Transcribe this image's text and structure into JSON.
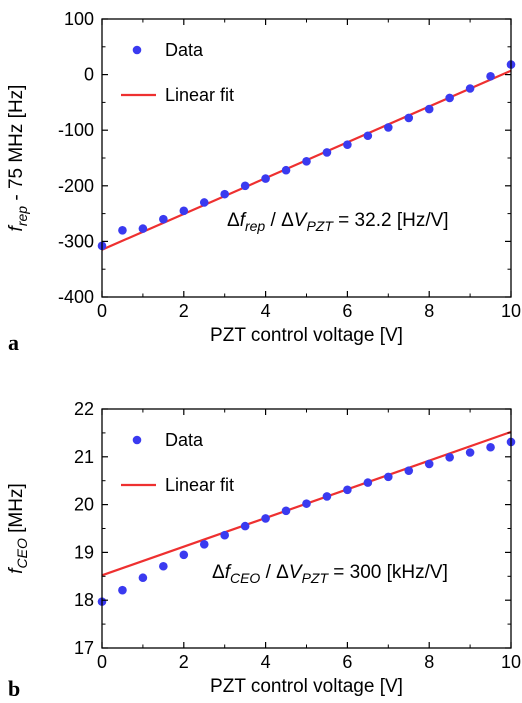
{
  "chart_data": [
    {
      "type": "scatter",
      "panel_label": "a",
      "xlabel": "PZT control voltage [V]",
      "ylabel": {
        "f": "f",
        "sub": "rep",
        "rest": " - 75 MHz [Hz]"
      },
      "xlim": [
        0,
        10
      ],
      "ylim": [
        -400,
        100
      ],
      "xticks": [
        0,
        2,
        4,
        6,
        8,
        10
      ],
      "yticks": [
        -400,
        -300,
        -200,
        -100,
        0,
        100
      ],
      "legend": {
        "position": "top-left",
        "data_label": "Data",
        "fit_label": "Linear fit"
      },
      "annotation": {
        "delta": "Δ",
        "f": "f",
        "f_sub": "rep",
        "slash": " / ",
        "v": "V",
        "v_sub": "PZT",
        "value": " = 32.2 [Hz/V]"
      },
      "series": [
        {
          "name": "Data",
          "color": "#3a3af0",
          "x": [
            0,
            0.5,
            1,
            1.5,
            2,
            2.5,
            3,
            3.5,
            4,
            4.5,
            5,
            5.5,
            6,
            6.5,
            7,
            7.5,
            8,
            8.5,
            9,
            9.5,
            10
          ],
          "y": [
            -308,
            -280,
            -277,
            -260,
            -245,
            -230,
            -215,
            -200,
            -187,
            -172,
            -156,
            -140,
            -126,
            -110,
            -95,
            -78,
            -62,
            -42,
            -25,
            -3,
            18
          ]
        },
        {
          "name": "Linear fit",
          "color": "#ee3030",
          "x": [
            0,
            10
          ],
          "y": [
            -315,
            7
          ]
        }
      ]
    },
    {
      "type": "scatter",
      "panel_label": "b",
      "xlabel": "PZT control voltage [V]",
      "ylabel": {
        "f": "f",
        "sub": "CEO",
        "rest": " [MHz]"
      },
      "xlim": [
        0,
        10
      ],
      "ylim": [
        17,
        22
      ],
      "xticks": [
        0,
        2,
        4,
        6,
        8,
        10
      ],
      "yticks": [
        17,
        18,
        19,
        20,
        21,
        22
      ],
      "legend": {
        "position": "top-left",
        "data_label": "Data",
        "fit_label": "Linear fit"
      },
      "annotation": {
        "delta": "Δ",
        "f": "f",
        "f_sub": "CEO",
        "slash": " / ",
        "v": "V",
        "v_sub": "PZT",
        "value": " = 300 [kHz/V]"
      },
      "series": [
        {
          "name": "Data",
          "color": "#3a3af0",
          "x": [
            0,
            0.5,
            1,
            1.5,
            2,
            2.5,
            3,
            3.5,
            4,
            4.5,
            5,
            5.5,
            6,
            6.5,
            7,
            7.5,
            8,
            8.5,
            9,
            9.5,
            10
          ],
          "y": [
            17.97,
            18.21,
            18.47,
            18.71,
            18.95,
            19.17,
            19.36,
            19.55,
            19.71,
            19.87,
            20.02,
            20.17,
            20.31,
            20.46,
            20.58,
            20.71,
            20.85,
            20.99,
            21.09,
            21.2,
            21.31
          ]
        },
        {
          "name": "Linear fit",
          "color": "#ee3030",
          "x": [
            0,
            10
          ],
          "y": [
            18.52,
            21.52
          ]
        }
      ]
    }
  ]
}
